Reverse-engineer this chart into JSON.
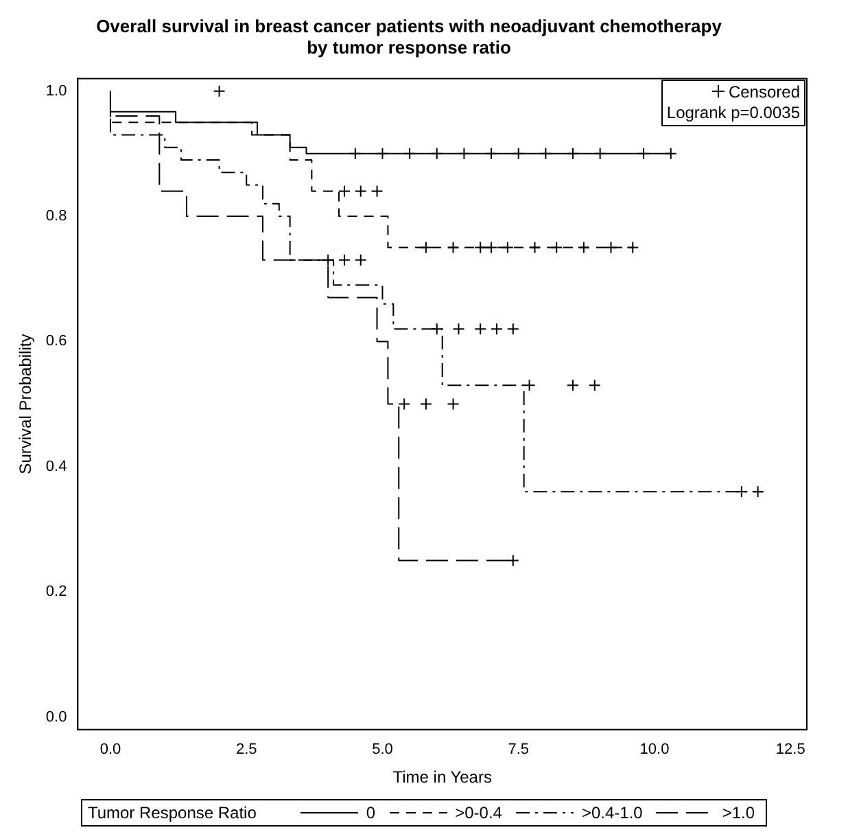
{
  "chart_data": {
    "type": "step",
    "title": "Overall survival in breast cancer patients with neoadjuvant chemotherapy\nby tumor response ratio",
    "xlabel": "Time in Years",
    "ylabel": "Survival Probability",
    "legend_title": "Tumor Response Ratio",
    "legend": "bottom",
    "annotations": [
      "Logrank p=0.0035"
    ],
    "xlim": [
      -0.6,
      12.8
    ],
    "xticks": [
      {
        "value": 0,
        "label": "0.0"
      },
      {
        "value": 2.5,
        "label": "2.5"
      },
      {
        "value": 5,
        "label": "5.0"
      },
      {
        "value": 7.5,
        "label": "7.5"
      },
      {
        "value": 10,
        "label": "10.0"
      },
      {
        "value": 12.5,
        "label": "12.5"
      }
    ],
    "ylim": [
      -0.02,
      1.02
    ],
    "yticks": [
      {
        "value": 0,
        "label": "0.0"
      },
      {
        "value": 0.2,
        "label": "0.2"
      },
      {
        "value": 0.4,
        "label": "0.4"
      },
      {
        "value": 0.6,
        "label": "0.6"
      },
      {
        "value": 0.8,
        "label": "0.8"
      },
      {
        "value": 1,
        "label": "1.0"
      }
    ],
    "series": [
      {
        "name": "0",
        "color": "#000000",
        "line_style": "solid",
        "x": [
          0,
          1.2,
          2.7,
          3.3,
          3.6,
          3.9,
          10.3
        ],
        "values": [
          1,
          0.967,
          0.95,
          0.93,
          0.91,
          0.9,
          0.9
        ]
      },
      {
        "name": ">0-0.4",
        "color": "#000000",
        "line_style": "dashed",
        "x": [
          0,
          2.6,
          3.3,
          3.7,
          4.2,
          5.1,
          5.4,
          9.6
        ],
        "values": [
          1,
          0.95,
          0.93,
          0.89,
          0.84,
          0.8,
          0.75,
          0.75
        ]
      },
      {
        "name": ">0.4-1.0",
        "color": "#000000",
        "line_style": "dashdot",
        "x": [
          0,
          1.0,
          1.3,
          2.0,
          2.5,
          2.8,
          3.1,
          3.3,
          4.1,
          5.0,
          5.2,
          6.1,
          7.6,
          11.3,
          12.0
        ],
        "values": [
          1,
          0.93,
          0.91,
          0.89,
          0.87,
          0.85,
          0.82,
          0.8,
          0.73,
          0.69,
          0.66,
          0.62,
          0.53,
          0.36,
          0.36
        ]
      },
      {
        "name": ">1.0",
        "color": "#000000",
        "line_style": "longdash",
        "x": [
          0,
          0.9,
          1.4,
          2.8,
          4.0,
          4.9,
          5.1,
          5.3,
          7.3,
          7.4
        ],
        "values": [
          1,
          0.96,
          0.84,
          0.8,
          0.73,
          0.67,
          0.6,
          0.5,
          0.25,
          0.25
        ]
      },
      {
        "name": "Censored",
        "type": "scatter",
        "color": "#000000",
        "marker": "cross",
        "x": [
          2.0,
          4.5,
          5.0,
          5.5,
          6.0,
          6.5,
          7.0,
          7.5,
          8.0,
          8.5,
          9.0,
          9.8,
          10.3,
          4.3,
          4.6,
          4.9,
          5.8,
          6.3,
          6.8,
          7.0,
          7.3,
          7.8,
          8.2,
          8.7,
          9.2,
          9.6,
          4.0,
          4.3,
          4.6,
          6.0,
          6.4,
          6.8,
          7.1,
          7.4,
          7.7,
          8.5,
          8.9,
          11.6,
          11.9,
          5.4,
          5.8,
          6.3,
          7.4
        ],
        "values": [
          1,
          0.9,
          0.9,
          0.9,
          0.9,
          0.9,
          0.9,
          0.9,
          0.9,
          0.9,
          0.9,
          0.9,
          0.9,
          0.84,
          0.84,
          0.84,
          0.75,
          0.75,
          0.75,
          0.75,
          0.75,
          0.75,
          0.75,
          0.75,
          0.75,
          0.75,
          0.73,
          0.73,
          0.73,
          0.62,
          0.62,
          0.62,
          0.62,
          0.62,
          0.53,
          0.53,
          0.53,
          0.36,
          0.36,
          0.5,
          0.5,
          0.5,
          0.25
        ]
      }
    ]
  }
}
